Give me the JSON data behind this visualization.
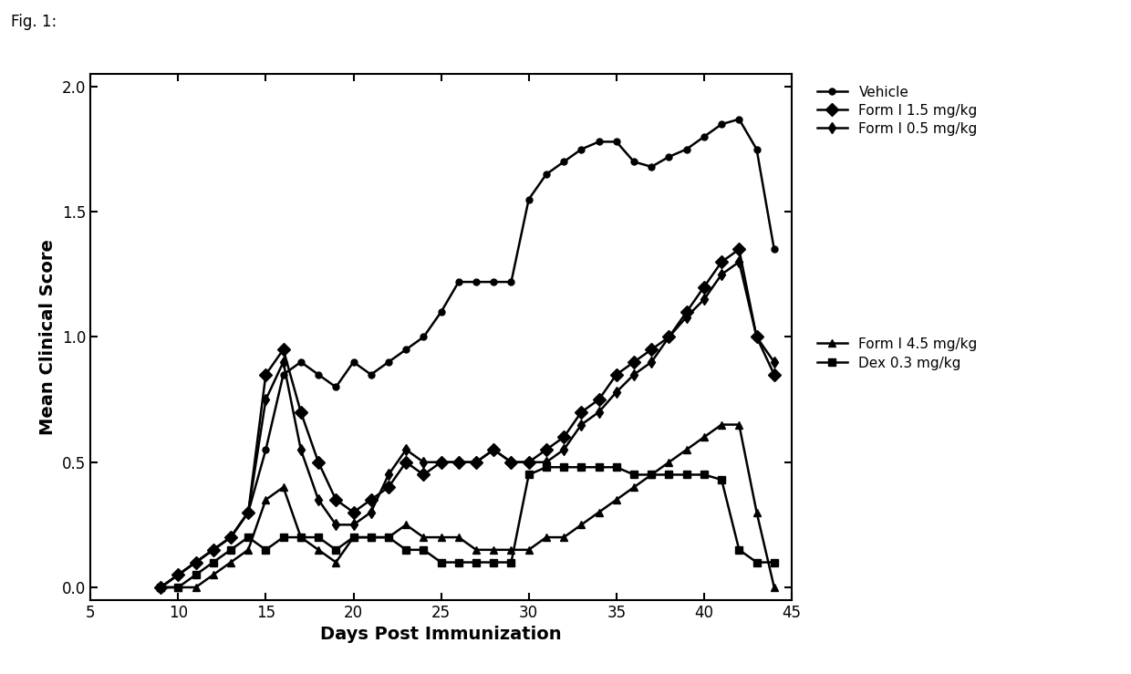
{
  "title": "Fig. 1:",
  "xlabel": "Days Post Immunization",
  "ylabel": "Mean Clinical Score",
  "xlim": [
    5,
    45
  ],
  "ylim": [
    -0.05,
    2.05
  ],
  "xticks": [
    5,
    10,
    15,
    20,
    25,
    30,
    35,
    40,
    45
  ],
  "yticks": [
    0.0,
    0.5,
    1.0,
    1.5,
    2.0
  ],
  "background_color": "#ffffff",
  "series": {
    "Vehicle": {
      "color": "#000000",
      "marker": "o",
      "markersize": 5,
      "linewidth": 1.8,
      "x": [
        9,
        10,
        11,
        12,
        13,
        14,
        15,
        16,
        17,
        18,
        19,
        20,
        21,
        22,
        23,
        24,
        25,
        26,
        27,
        28,
        29,
        30,
        31,
        32,
        33,
        34,
        35,
        36,
        37,
        38,
        39,
        40,
        41,
        42,
        43,
        44
      ],
      "y": [
        0.0,
        0.05,
        0.1,
        0.15,
        0.2,
        0.3,
        0.55,
        0.85,
        0.9,
        0.85,
        0.8,
        0.9,
        0.85,
        0.9,
        0.95,
        1.0,
        1.1,
        1.22,
        1.22,
        1.22,
        1.22,
        1.55,
        1.65,
        1.7,
        1.75,
        1.78,
        1.78,
        1.7,
        1.68,
        1.72,
        1.75,
        1.8,
        1.85,
        1.87,
        1.75,
        1.35
      ]
    },
    "Form I 1.5 mg/kg": {
      "color": "#000000",
      "marker": "D",
      "markersize": 7,
      "linewidth": 1.8,
      "x": [
        9,
        10,
        11,
        12,
        13,
        14,
        15,
        16,
        17,
        18,
        19,
        20,
        21,
        22,
        23,
        24,
        25,
        26,
        27,
        28,
        29,
        30,
        31,
        32,
        33,
        34,
        35,
        36,
        37,
        38,
        39,
        40,
        41,
        42,
        43,
        44
      ],
      "y": [
        0.0,
        0.05,
        0.1,
        0.15,
        0.2,
        0.3,
        0.85,
        0.95,
        0.7,
        0.5,
        0.35,
        0.3,
        0.35,
        0.4,
        0.5,
        0.45,
        0.5,
        0.5,
        0.5,
        0.55,
        0.5,
        0.5,
        0.55,
        0.6,
        0.7,
        0.75,
        0.85,
        0.9,
        0.95,
        1.0,
        1.1,
        1.2,
        1.3,
        1.35,
        1.0,
        0.85
      ]
    },
    "Form I 0.5 mg/kg": {
      "color": "#000000",
      "marker": "d",
      "markersize": 6,
      "linewidth": 1.8,
      "x": [
        9,
        10,
        11,
        12,
        13,
        14,
        15,
        16,
        17,
        18,
        19,
        20,
        21,
        22,
        23,
        24,
        25,
        26,
        27,
        28,
        29,
        30,
        31,
        32,
        33,
        34,
        35,
        36,
        37,
        38,
        39,
        40,
        41,
        42,
        43,
        44
      ],
      "y": [
        0.0,
        0.05,
        0.1,
        0.15,
        0.2,
        0.3,
        0.75,
        0.9,
        0.55,
        0.35,
        0.25,
        0.25,
        0.3,
        0.45,
        0.55,
        0.5,
        0.5,
        0.5,
        0.5,
        0.55,
        0.5,
        0.5,
        0.5,
        0.55,
        0.65,
        0.7,
        0.78,
        0.85,
        0.9,
        1.0,
        1.08,
        1.15,
        1.25,
        1.3,
        1.0,
        0.9
      ]
    },
    "Form I 4.5 mg/kg": {
      "color": "#000000",
      "marker": "^",
      "markersize": 6,
      "linewidth": 1.8,
      "x": [
        9,
        10,
        11,
        12,
        13,
        14,
        15,
        16,
        17,
        18,
        19,
        20,
        21,
        22,
        23,
        24,
        25,
        26,
        27,
        28,
        29,
        30,
        31,
        32,
        33,
        34,
        35,
        36,
        37,
        38,
        39,
        40,
        41,
        42,
        43,
        44
      ],
      "y": [
        0.0,
        0.0,
        0.0,
        0.05,
        0.1,
        0.15,
        0.35,
        0.4,
        0.2,
        0.15,
        0.1,
        0.2,
        0.2,
        0.2,
        0.25,
        0.2,
        0.2,
        0.2,
        0.15,
        0.15,
        0.15,
        0.15,
        0.2,
        0.2,
        0.25,
        0.3,
        0.35,
        0.4,
        0.45,
        0.5,
        0.55,
        0.6,
        0.65,
        0.65,
        0.3,
        0.0
      ]
    },
    "Dex 0.3 mg/kg": {
      "color": "#000000",
      "marker": "s",
      "markersize": 6,
      "linewidth": 1.8,
      "x": [
        9,
        10,
        11,
        12,
        13,
        14,
        15,
        16,
        17,
        18,
        19,
        20,
        21,
        22,
        23,
        24,
        25,
        26,
        27,
        28,
        29,
        30,
        31,
        32,
        33,
        34,
        35,
        36,
        37,
        38,
        39,
        40,
        41,
        42,
        43,
        44
      ],
      "y": [
        0.0,
        0.0,
        0.05,
        0.1,
        0.15,
        0.2,
        0.15,
        0.2,
        0.2,
        0.2,
        0.15,
        0.2,
        0.2,
        0.2,
        0.15,
        0.15,
        0.1,
        0.1,
        0.1,
        0.1,
        0.1,
        0.45,
        0.48,
        0.48,
        0.48,
        0.48,
        0.48,
        0.45,
        0.45,
        0.45,
        0.45,
        0.45,
        0.43,
        0.15,
        0.1,
        0.1
      ]
    }
  },
  "legend_groups": [
    {
      "names": [
        "Vehicle",
        "Form I 1.5 mg/kg",
        "Form I 0.5 mg/kg"
      ],
      "gap_after": true
    },
    {
      "names": [
        "Form I 4.5 mg/kg",
        "Dex 0.3 mg/kg"
      ],
      "gap_after": false
    }
  ]
}
